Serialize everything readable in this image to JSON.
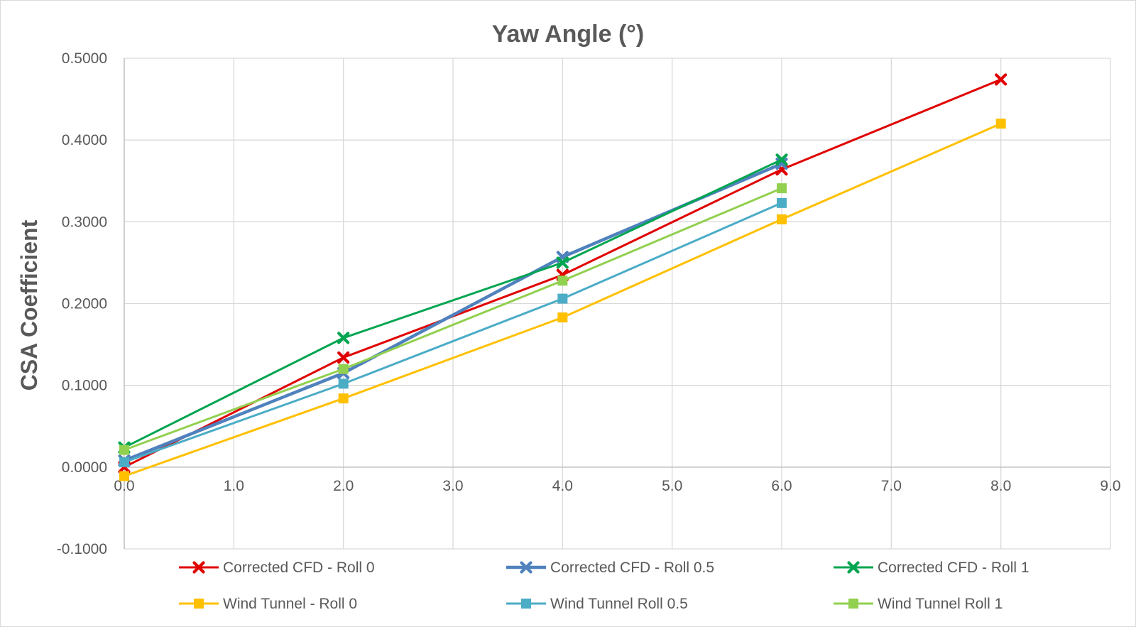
{
  "chart_data": {
    "type": "line",
    "title": "Yaw Angle (°)",
    "xlabel": "",
    "ylabel": "CSA Coefficient",
    "xlim": [
      0,
      9
    ],
    "ylim": [
      -0.1,
      0.5
    ],
    "x_ticks": [
      "0.0",
      "1.0",
      "2.0",
      "3.0",
      "4.0",
      "5.0",
      "6.0",
      "7.0",
      "8.0",
      "9.0"
    ],
    "y_ticks": [
      "0.5000",
      "0.4000",
      "0.3000",
      "0.2000",
      "0.1000",
      "0.0000",
      "-0.1000"
    ],
    "grid": true,
    "legend_position": "bottom",
    "series": [
      {
        "name": "Corrected CFD - Roll 0",
        "color": "#e00000",
        "marker": "x",
        "line_width": 3,
        "x": [
          0,
          2,
          4,
          6,
          8
        ],
        "y": [
          0.0,
          0.134,
          0.235,
          0.364,
          0.474
        ]
      },
      {
        "name": "Corrected CFD - Roll 0.5",
        "color": "#4f81bd",
        "marker": "x",
        "line_width": 4.5,
        "x": [
          0,
          2,
          4,
          6
        ],
        "y": [
          0.008,
          0.115,
          0.257,
          0.371
        ]
      },
      {
        "name": "Corrected CFD - Roll 1",
        "color": "#00a550",
        "marker": "x",
        "line_width": 3,
        "x": [
          0,
          2,
          4,
          6
        ],
        "y": [
          0.024,
          0.158,
          0.25,
          0.376
        ]
      },
      {
        "name": "Wind Tunnel - Roll 0",
        "color": "#ffc000",
        "marker": "square",
        "line_width": 3,
        "x": [
          0,
          2,
          4,
          6,
          8
        ],
        "y": [
          -0.011,
          0.084,
          0.183,
          0.303,
          0.42
        ]
      },
      {
        "name": "Wind Tunnel Roll 0.5",
        "color": "#4bacc6",
        "marker": "square",
        "line_width": 3,
        "x": [
          0,
          2,
          4,
          6
        ],
        "y": [
          0.006,
          0.102,
          0.206,
          0.323
        ]
      },
      {
        "name": "Wind Tunnel Roll 1",
        "color": "#92d050",
        "marker": "square",
        "line_width": 3,
        "x": [
          0,
          2,
          4,
          6
        ],
        "y": [
          0.021,
          0.12,
          0.228,
          0.341
        ]
      }
    ]
  }
}
